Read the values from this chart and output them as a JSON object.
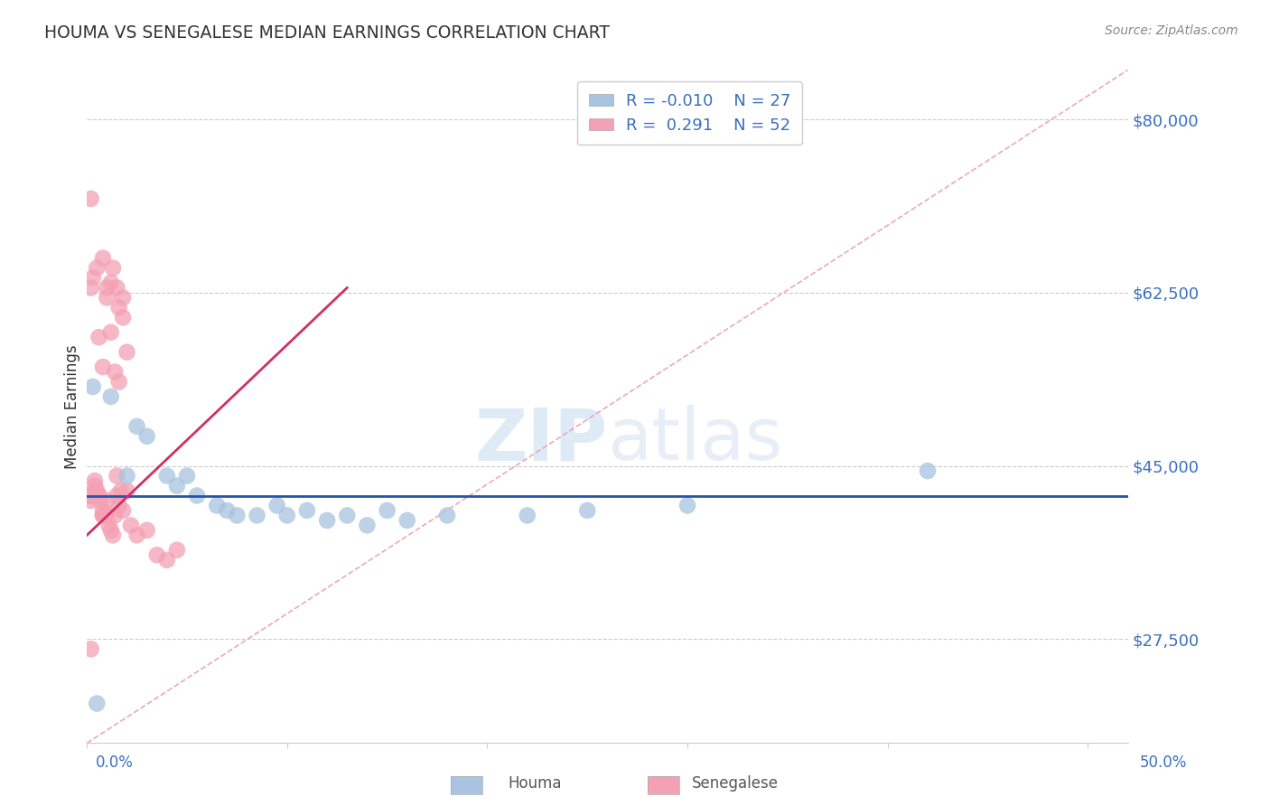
{
  "title": "HOUMA VS SENEGALESE MEDIAN EARNINGS CORRELATION CHART",
  "source": "Source: ZipAtlas.com",
  "ylabel": "Median Earnings",
  "y_ticks": [
    27500,
    45000,
    62500,
    80000
  ],
  "y_tick_labels": [
    "$27,500",
    "$45,000",
    "$62,500",
    "$80,000"
  ],
  "ylim": [
    17000,
    85000
  ],
  "xlim": [
    0.0,
    0.52
  ],
  "houma_R": "-0.010",
  "houma_N": "27",
  "senegalese_R": "0.291",
  "senegalese_N": "52",
  "houma_color": "#a8c4e0",
  "senegalese_color": "#f4a0b5",
  "houma_line_color": "#2255aa",
  "senegalese_line_color": "#d03060",
  "diagonal_color": "#e8a0b0",
  "watermark_color": "#d8e8f4",
  "houma_points": [
    [
      0.003,
      53000
    ],
    [
      0.012,
      52000
    ],
    [
      0.02,
      44000
    ],
    [
      0.025,
      49000
    ],
    [
      0.03,
      48000
    ],
    [
      0.04,
      44000
    ],
    [
      0.045,
      43000
    ],
    [
      0.05,
      44000
    ],
    [
      0.055,
      42000
    ],
    [
      0.065,
      41000
    ],
    [
      0.07,
      40500
    ],
    [
      0.075,
      40000
    ],
    [
      0.085,
      40000
    ],
    [
      0.095,
      41000
    ],
    [
      0.1,
      40000
    ],
    [
      0.11,
      40500
    ],
    [
      0.12,
      39500
    ],
    [
      0.13,
      40000
    ],
    [
      0.14,
      39000
    ],
    [
      0.15,
      40500
    ],
    [
      0.16,
      39500
    ],
    [
      0.18,
      40000
    ],
    [
      0.22,
      40000
    ],
    [
      0.25,
      40500
    ],
    [
      0.3,
      41000
    ],
    [
      0.42,
      44500
    ],
    [
      0.005,
      21000
    ]
  ],
  "senegalese_points": [
    [
      0.002,
      72000
    ],
    [
      0.005,
      65000
    ],
    [
      0.008,
      66000
    ],
    [
      0.01,
      63000
    ],
    [
      0.012,
      63500
    ],
    [
      0.013,
      65000
    ],
    [
      0.015,
      63000
    ],
    [
      0.016,
      61000
    ],
    [
      0.018,
      60000
    ],
    [
      0.002,
      63000
    ],
    [
      0.003,
      64000
    ],
    [
      0.006,
      58000
    ],
    [
      0.008,
      55000
    ],
    [
      0.01,
      62000
    ],
    [
      0.012,
      58500
    ],
    [
      0.014,
      54500
    ],
    [
      0.016,
      53500
    ],
    [
      0.018,
      62000
    ],
    [
      0.02,
      56500
    ],
    [
      0.001,
      42000
    ],
    [
      0.002,
      41500
    ],
    [
      0.003,
      42000
    ],
    [
      0.004,
      43500
    ],
    [
      0.005,
      42500
    ],
    [
      0.006,
      42000
    ],
    [
      0.007,
      41500
    ],
    [
      0.008,
      40500
    ],
    [
      0.009,
      40000
    ],
    [
      0.01,
      40000
    ],
    [
      0.011,
      39000
    ],
    [
      0.012,
      38500
    ],
    [
      0.013,
      38000
    ],
    [
      0.014,
      40000
    ],
    [
      0.015,
      42000
    ],
    [
      0.016,
      41000
    ],
    [
      0.017,
      42500
    ],
    [
      0.018,
      40500
    ],
    [
      0.02,
      42500
    ],
    [
      0.022,
      39000
    ],
    [
      0.025,
      38000
    ],
    [
      0.03,
      38500
    ],
    [
      0.035,
      36000
    ],
    [
      0.04,
      35500
    ],
    [
      0.045,
      36500
    ],
    [
      0.002,
      42000
    ],
    [
      0.004,
      43000
    ],
    [
      0.006,
      42000
    ],
    [
      0.008,
      40000
    ],
    [
      0.01,
      41500
    ],
    [
      0.015,
      44000
    ],
    [
      0.002,
      26500
    ],
    [
      0.008,
      40000
    ]
  ]
}
